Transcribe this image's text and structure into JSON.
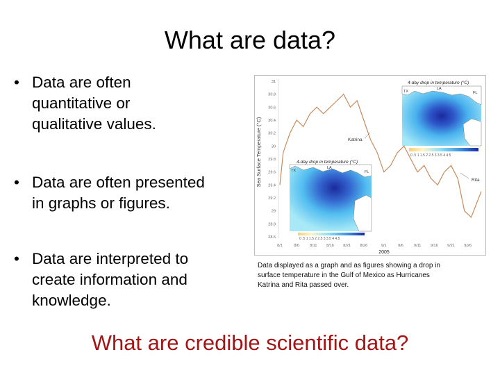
{
  "slide": {
    "title": "What are data?",
    "bullets": [
      {
        "symbol": "•",
        "lines": [
          "Data are often",
          "quantitative or",
          "qualitative values."
        ]
      },
      {
        "symbol": "•",
        "lines": [
          "Data are often presented",
          "in graphs or figures."
        ]
      },
      {
        "symbol": "•",
        "lines": [
          "Data are interpreted to",
          "create information and",
          "knowledge."
        ]
      }
    ],
    "caption": [
      "Data displayed as a graph and as figures showing a drop in",
      "surface temperature in the Gulf of Mexico as Hurricanes",
      "Katrina and Rita passed over."
    ],
    "bottom_question": "What are credible scientific data?"
  },
  "figure": {
    "ylabel": "Sea Surface Temperature (°C)",
    "xlabel": "2005",
    "yticks": [
      "31",
      "30.8",
      "30.6",
      "30.4",
      "30.2",
      "30",
      "29.8",
      "29.6",
      "29.4",
      "29.2",
      "29",
      "28.8",
      "28.6"
    ],
    "xticks": [
      "8/1",
      "8/6",
      "8/11",
      "8/16",
      "8/21",
      "8/26",
      "9/1",
      "9/6",
      "9/11",
      "9/16",
      "9/21",
      "9/26"
    ],
    "annotations": {
      "katrina": "Katrina",
      "rita": "Rita"
    },
    "map_top": {
      "title": "4-day drop in temperature (°C)",
      "labels": [
        "TX",
        "LA",
        "FL"
      ],
      "colorbar_ticks": "0  .5  1  1.5  2  2.5  3  3.5  4  4.5"
    },
    "map_bottom": {
      "title": "4-day drop in temperature (°C)",
      "labels": [
        "TX",
        "LA",
        "FL"
      ],
      "colorbar_ticks": "0  .5  1  1.5  2  2.5  3  3.5  4  4.5"
    },
    "colors": {
      "line": "#c98a5a",
      "map_light": "#9fe6f7",
      "map_mid": "#49b3ee",
      "map_dark": "#1b2a9e",
      "land": "#ffffff"
    }
  },
  "chart_data": {
    "type": "line",
    "xlabel": "2005",
    "ylabel": "Sea Surface Temperature (°C)",
    "ylim": [
      28.6,
      31
    ],
    "x": [
      "8/1",
      "8/2",
      "8/4",
      "8/6",
      "8/8",
      "8/10",
      "8/12",
      "8/14",
      "8/16",
      "8/18",
      "8/20",
      "8/22",
      "8/24",
      "8/26",
      "8/28",
      "8/30",
      "9/1",
      "9/3",
      "9/5",
      "9/7",
      "9/9",
      "9/11",
      "9/13",
      "9/15",
      "9/17",
      "9/19",
      "9/21",
      "9/23",
      "9/25",
      "9/27",
      "9/30"
    ],
    "series": [
      {
        "values": [
          29.4,
          29.9,
          30.2,
          30.4,
          30.3,
          30.5,
          30.6,
          30.5,
          30.6,
          30.7,
          30.8,
          30.6,
          30.7,
          30.4,
          30.1,
          29.9,
          29.6,
          29.7,
          29.9,
          30.0,
          29.8,
          29.6,
          29.7,
          29.5,
          29.4,
          29.6,
          29.7,
          29.5,
          29.0,
          28.9,
          29.3
        ]
      }
    ],
    "annotations": [
      {
        "text": "Katrina",
        "x": "8/30"
      },
      {
        "text": "Rita",
        "x": "9/23"
      }
    ]
  }
}
